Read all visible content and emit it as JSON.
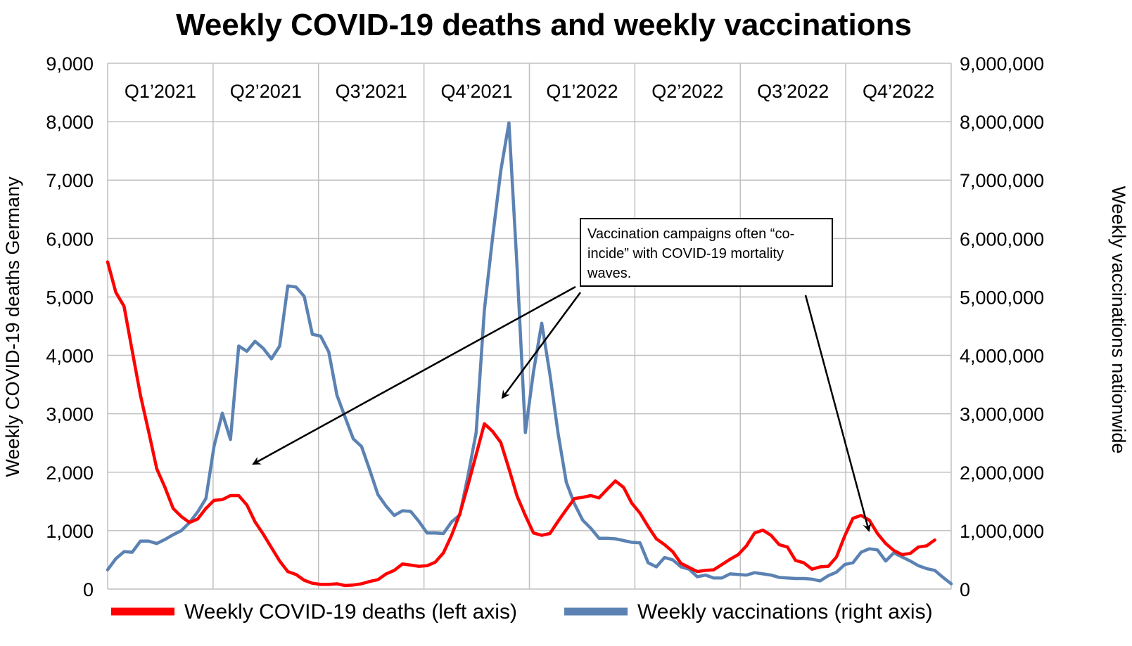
{
  "colors": {
    "deaths": "#ff0000",
    "vaccinations": "#5b82b2",
    "grid": "#c0c0c0",
    "text": "#000000"
  },
  "chart_data": {
    "type": "line",
    "title": "Weekly COVID-19 deaths and weekly vaccinations",
    "ylabel_left": "Weekly COVID-19 deaths Germany",
    "ylabel_right": "Weekly vaccinations nationwide",
    "ylim_left": [
      0,
      9000
    ],
    "ylim_right": [
      0,
      9000000
    ],
    "yticks_left": [
      "0",
      "1,000",
      "2,000",
      "3,000",
      "4,000",
      "5,000",
      "6,000",
      "7,000",
      "8,000",
      "9,000"
    ],
    "yticks_right": [
      "0",
      "1,000,000",
      "2,000,000",
      "3,000,000",
      "4,000,000",
      "5,000,000",
      "6,000,000",
      "7,000,000",
      "8,000,000",
      "9,000,000"
    ],
    "quarters": [
      "Q1’2021",
      "Q2’2021",
      "Q3’2021",
      "Q4’2021",
      "Q1’2022",
      "Q2’2022",
      "Q3’2022",
      "Q4’2022"
    ],
    "x_unit": "week",
    "xlim": [
      1,
      104
    ],
    "grid": true,
    "legend_position": "bottom",
    "series": [
      {
        "name": "Weekly COVID-19 deaths (left axis)",
        "axis": "left",
        "values": [
          5600,
          5080,
          4840,
          4080,
          3320,
          2700,
          2060,
          1740,
          1380,
          1240,
          1140,
          1200,
          1380,
          1520,
          1530,
          1600,
          1600,
          1440,
          1150,
          940,
          710,
          480,
          300,
          250,
          150,
          100,
          80,
          80,
          90,
          60,
          70,
          90,
          130,
          160,
          260,
          320,
          430,
          410,
          390,
          400,
          460,
          620,
          920,
          1290,
          1780,
          2300,
          2830,
          2700,
          2510,
          2060,
          1590,
          1260,
          960,
          920,
          950,
          1160,
          1360,
          1550,
          1570,
          1600,
          1560,
          1710,
          1850,
          1740,
          1470,
          1300,
          1070,
          860,
          760,
          640,
          440,
          370,
          300,
          320,
          330,
          420,
          510,
          590,
          740,
          960,
          1010,
          920,
          760,
          720,
          490,
          450,
          340,
          380,
          390,
          550,
          910,
          1210,
          1260,
          1180,
          950,
          780,
          660,
          590,
          610,
          720,
          740,
          840
        ]
      },
      {
        "name": "Weekly vaccinations (right axis)",
        "axis": "right",
        "values": [
          330000,
          520000,
          640000,
          630000,
          820000,
          820000,
          780000,
          850000,
          930000,
          1000000,
          1140000,
          1320000,
          1550000,
          2450000,
          3010000,
          2560000,
          4160000,
          4070000,
          4240000,
          4120000,
          3940000,
          4160000,
          5190000,
          5170000,
          5010000,
          4360000,
          4330000,
          4060000,
          3320000,
          2940000,
          2570000,
          2440000,
          2040000,
          1620000,
          1420000,
          1260000,
          1340000,
          1330000,
          1160000,
          960000,
          960000,
          950000,
          1150000,
          1270000,
          1940000,
          2680000,
          4780000,
          6010000,
          7160000,
          7980000,
          5500000,
          2680000,
          3720000,
          4550000,
          3680000,
          2670000,
          1830000,
          1460000,
          1180000,
          1040000,
          870000,
          870000,
          860000,
          830000,
          800000,
          790000,
          450000,
          380000,
          540000,
          500000,
          380000,
          340000,
          210000,
          240000,
          190000,
          190000,
          260000,
          250000,
          240000,
          280000,
          260000,
          240000,
          200000,
          190000,
          180000,
          180000,
          170000,
          140000,
          230000,
          290000,
          420000,
          450000,
          630000,
          690000,
          670000,
          480000,
          620000,
          550000,
          480000,
          400000,
          350000,
          320000,
          200000,
          90000
        ]
      }
    ],
    "annotation": {
      "text_lines": [
        "Vaccination campaigns often “co-",
        "incide” with COVID-19 mortality",
        "waves."
      ]
    }
  }
}
